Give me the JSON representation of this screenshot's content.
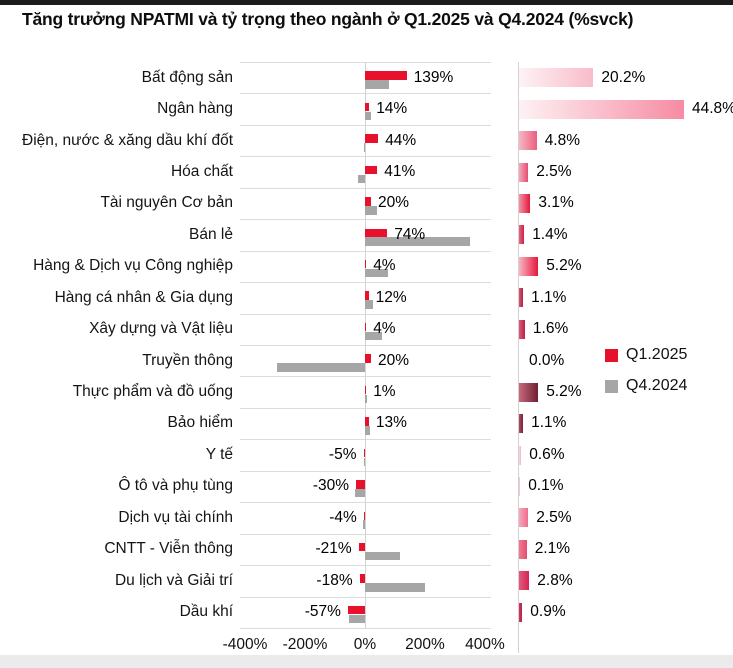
{
  "page": {
    "title": "Tăng trưởng NPATMI và tỷ trọng theo ngành ở Q1.2025 và Q4.2024 (%svck)"
  },
  "legend": {
    "q1_label": "Q1.2025",
    "q4_label": "Q4.2024",
    "q1_color": "#e8112d",
    "q4_color": "#a6a6a6"
  },
  "chart_data": {
    "type": "bar",
    "title": "Tăng trưởng NPATMI và tỷ trọng theo ngành ở Q1.2025 và Q4.2024 (%svck)",
    "orientation": "horizontal",
    "categories": [
      "Bất động sản",
      "Ngân hàng",
      "Điện, nước & xăng dầu khí đốt",
      "Hóa chất",
      "Tài nguyên Cơ bản",
      "Bán lẻ",
      "Hàng & Dịch vụ Công nghiệp",
      "Hàng cá nhân & Gia dụng",
      "Xây dựng và Vật liệu",
      "Truyền thông",
      "Thực phẩm và đồ uống",
      "Bảo hiểm",
      "Y tế",
      "Ô tô và phụ tùng",
      "Dịch vụ tài chính",
      "CNTT - Viễn thông",
      "Du lịch và Giải trí",
      "Dầu khí"
    ],
    "series": [
      {
        "name": "Q1.2025 NPATMI growth (%svck)",
        "color": "#e8112d",
        "values": [
          139,
          14,
          44,
          41,
          20,
          74,
          4,
          12,
          4,
          20,
          1,
          13,
          -5,
          -30,
          -4,
          -21,
          -18,
          -57
        ],
        "labels": [
          "139%",
          "14%",
          "44%",
          "41%",
          "20%",
          "74%",
          "4%",
          "12%",
          "4%",
          "20%",
          "1%",
          "13%",
          "-5%",
          "-30%",
          "-4%",
          "-21%",
          "-18%",
          "-57%"
        ]
      },
      {
        "name": "Q4.2024 NPATMI growth (unlabeled, estimated from bars)",
        "color": "#a6a6a6",
        "values": [
          80,
          20,
          -5,
          -22,
          40,
          350,
          75,
          27,
          55,
          -293,
          7,
          15,
          -2,
          -35,
          -8,
          115,
          200,
          -55
        ]
      },
      {
        "name": "Tỷ trọng (share of NPATMI)",
        "values": [
          20.2,
          44.8,
          4.8,
          2.5,
          3.1,
          1.4,
          5.2,
          1.1,
          1.6,
          0.0,
          5.2,
          1.1,
          0.6,
          0.1,
          2.5,
          2.1,
          2.8,
          0.9
        ],
        "labels": [
          "20.2%",
          "44.8%",
          "4.8%",
          "2.5%",
          "3.1%",
          "1.4%",
          "5.2%",
          "1.1%",
          "1.6%",
          "0.0%",
          "5.2%",
          "1.1%",
          "0.6%",
          "0.1%",
          "2.5%",
          "2.1%",
          "2.8%",
          "0.9%"
        ],
        "bar_gradients": [
          [
            "#fdf3f5",
            "#f8bcca"
          ],
          [
            "#fdf2f4",
            "#f78ba3"
          ],
          [
            "#f5b7c4",
            "#ec5f7e"
          ],
          [
            "#f3a9bb",
            "#e64e6e"
          ],
          [
            "#f194a6",
            "#e5173c"
          ],
          [
            "#e06a84",
            "#cf1e45"
          ],
          [
            "#f6b6c2",
            "#e7173b"
          ],
          [
            "#cf5d75",
            "#ba1e43"
          ],
          [
            "#d45e78",
            "#c11e48"
          ],
          [
            "#ffffff",
            "#ffffff"
          ],
          [
            "#c96a7c",
            "#6d1f33"
          ],
          [
            "#a84f63",
            "#7c1f38"
          ],
          [
            "#f9dde3",
            "#f2b3c2"
          ],
          [
            "#f5c6d1",
            "#f5c6d1"
          ],
          [
            "#f8a8bc",
            "#ee6d8d"
          ],
          [
            "#ef7b93",
            "#e54e71"
          ],
          [
            "#e25b7d",
            "#d62355"
          ],
          [
            "#cc3a5c",
            "#bd2248"
          ]
        ]
      }
    ],
    "x_ticks": [
      "-400%",
      "-200%",
      "0%",
      "200%",
      "400%"
    ],
    "x_tick_values": [
      -400,
      -200,
      0,
      200,
      400
    ],
    "xlim": [
      -400,
      400
    ],
    "grid": "row separators + zero line",
    "legend_position": "middle-right"
  }
}
